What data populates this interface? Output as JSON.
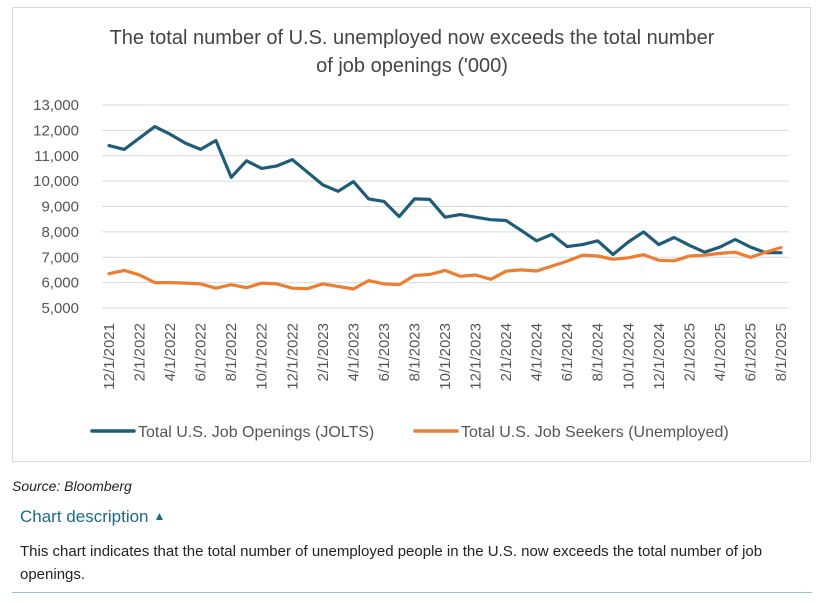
{
  "chart_data": {
    "type": "line",
    "title_lines": [
      "The total number of U.S. unemployed now exceeds the total number",
      "of job openings ('000)"
    ],
    "ylim": [
      5000,
      13000
    ],
    "yticks": [
      "5,000",
      "6,000",
      "7,000",
      "8,000",
      "9,000",
      "10,000",
      "11,000",
      "12,000",
      "13,000"
    ],
    "ytick_values": [
      5000,
      6000,
      7000,
      8000,
      9000,
      10000,
      11000,
      12000,
      13000
    ],
    "xtick_labels": [
      "12/1/2021",
      "2/1/2022",
      "4/1/2022",
      "6/1/2022",
      "8/1/2022",
      "10/1/2022",
      "12/1/2022",
      "2/1/2023",
      "4/1/2023",
      "6/1/2023",
      "8/1/2023",
      "10/1/2023",
      "12/1/2023",
      "2/1/2024",
      "4/1/2024",
      "6/1/2024",
      "8/1/2024",
      "10/1/2024",
      "12/1/2024",
      "2/1/2025",
      "4/1/2025",
      "6/1/2025",
      "8/1/2025"
    ],
    "x_start": "12/1/2021",
    "x_end": "8/1/2025",
    "grid": true,
    "legend_position": "bottom",
    "series": [
      {
        "name": "Total U.S. Job Openings (JOLTS)",
        "color": "#1f5c7a",
        "values": [
          11400,
          11250,
          11700,
          12150,
          11850,
          11500,
          11250,
          11600,
          10150,
          10800,
          10500,
          10600,
          10850,
          10350,
          9850,
          9600,
          9980,
          9300,
          9200,
          8600,
          9300,
          9280,
          8580,
          8680,
          8580,
          8480,
          8450,
          8050,
          7650,
          7900,
          7420,
          7500,
          7650,
          7110,
          7600,
          8000,
          7500,
          7780,
          7470,
          7200,
          7400,
          7700,
          7400,
          7180,
          7180
        ]
      },
      {
        "name": "Total U.S. Job Seekers (Unemployed)",
        "color": "#ed7d31",
        "values": [
          6350,
          6480,
          6300,
          6000,
          6000,
          5980,
          5950,
          5780,
          5920,
          5800,
          5980,
          5950,
          5780,
          5760,
          5950,
          5850,
          5750,
          6080,
          5950,
          5920,
          6280,
          6320,
          6480,
          6250,
          6300,
          6130,
          6450,
          6500,
          6460,
          6650,
          6850,
          7080,
          7050,
          6920,
          6980,
          7100,
          6880,
          6860,
          7050,
          7080,
          7150,
          7200,
          7000,
          7200,
          7380
        ]
      }
    ]
  },
  "source_text": "Source: Bloomberg",
  "description": {
    "toggle_label": "Chart description",
    "chevron": "^",
    "text": "This chart indicates that the total number of unemployed people in the U.S. now exceeds the total number of job openings."
  }
}
